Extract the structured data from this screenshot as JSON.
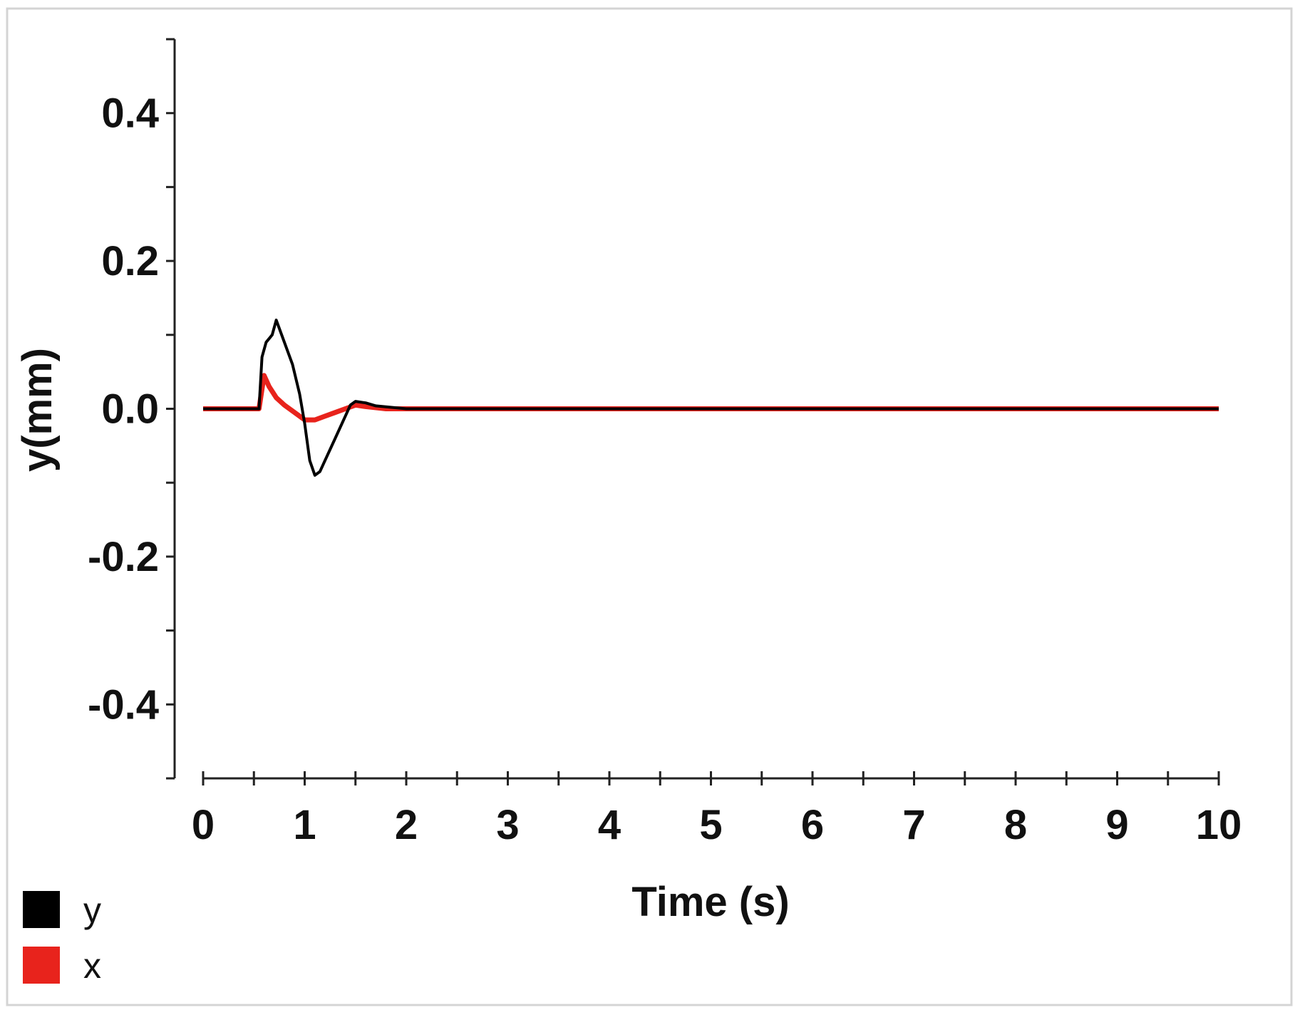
{
  "chart_data": {
    "type": "line",
    "title": "",
    "xlabel": "Time (s)",
    "ylabel": "y(mm)",
    "xlim": [
      0,
      10
    ],
    "ylim": [
      -0.5,
      0.5
    ],
    "x_ticks": [
      0,
      1,
      2,
      3,
      4,
      5,
      6,
      7,
      8,
      9,
      10
    ],
    "x_tick_labels": [
      "0",
      "1",
      "2",
      "3",
      "4",
      "5",
      "6",
      "7",
      "8",
      "9",
      "10"
    ],
    "y_ticks": [
      0.4,
      0.2,
      0.0,
      -0.2,
      -0.4
    ],
    "y_tick_labels": [
      "0.4",
      "0.2",
      "0.0",
      "-0.2",
      "-0.4"
    ],
    "grid": false,
    "legend_position": "bottom-left",
    "series": [
      {
        "name": "y",
        "color": "#000000",
        "x": [
          0,
          0.3,
          0.55,
          0.58,
          0.62,
          0.68,
          0.72,
          0.8,
          0.88,
          0.95,
          1.0,
          1.05,
          1.1,
          1.15,
          1.2,
          1.3,
          1.4,
          1.45,
          1.5,
          1.6,
          1.7,
          2.0,
          2.5,
          3.0,
          3.5,
          4.0,
          4.5,
          5.0,
          5.5,
          6.0,
          6.5,
          7.0,
          7.5,
          8.0,
          8.5,
          9.0,
          9.5,
          10.0
        ],
        "values": [
          0.0,
          0.0,
          0.0,
          0.07,
          0.09,
          0.1,
          0.12,
          0.09,
          0.06,
          0.02,
          -0.02,
          -0.07,
          -0.09,
          -0.085,
          -0.07,
          -0.04,
          -0.01,
          0.005,
          0.01,
          0.008,
          0.004,
          0.0,
          0.0,
          0.0,
          0.0,
          0.0,
          0.0,
          0.0,
          0.0,
          0.0,
          0.0,
          0.0,
          0.0,
          0.0,
          0.0,
          0.0,
          0.0,
          0.0
        ]
      },
      {
        "name": "x",
        "color": "#e8231c",
        "x": [
          0,
          0.3,
          0.55,
          0.6,
          0.65,
          0.72,
          0.8,
          0.9,
          1.0,
          1.1,
          1.2,
          1.3,
          1.4,
          1.5,
          1.6,
          1.8,
          2.0,
          2.5,
          3.0,
          3.5,
          4.0,
          4.5,
          5.0,
          5.5,
          6.0,
          6.5,
          7.0,
          7.5,
          8.0,
          8.5,
          9.0,
          9.5,
          10.0
        ],
        "values": [
          0.0,
          0.0,
          0.0,
          0.045,
          0.03,
          0.015,
          0.005,
          -0.005,
          -0.015,
          -0.015,
          -0.01,
          -0.005,
          0.0,
          0.005,
          0.003,
          0.0,
          0.0,
          0.0,
          0.0,
          0.0,
          0.0,
          0.0,
          0.0,
          0.0,
          0.0,
          0.0,
          0.0,
          0.0,
          0.0,
          0.0,
          0.0,
          0.0,
          0.0
        ]
      }
    ]
  }
}
